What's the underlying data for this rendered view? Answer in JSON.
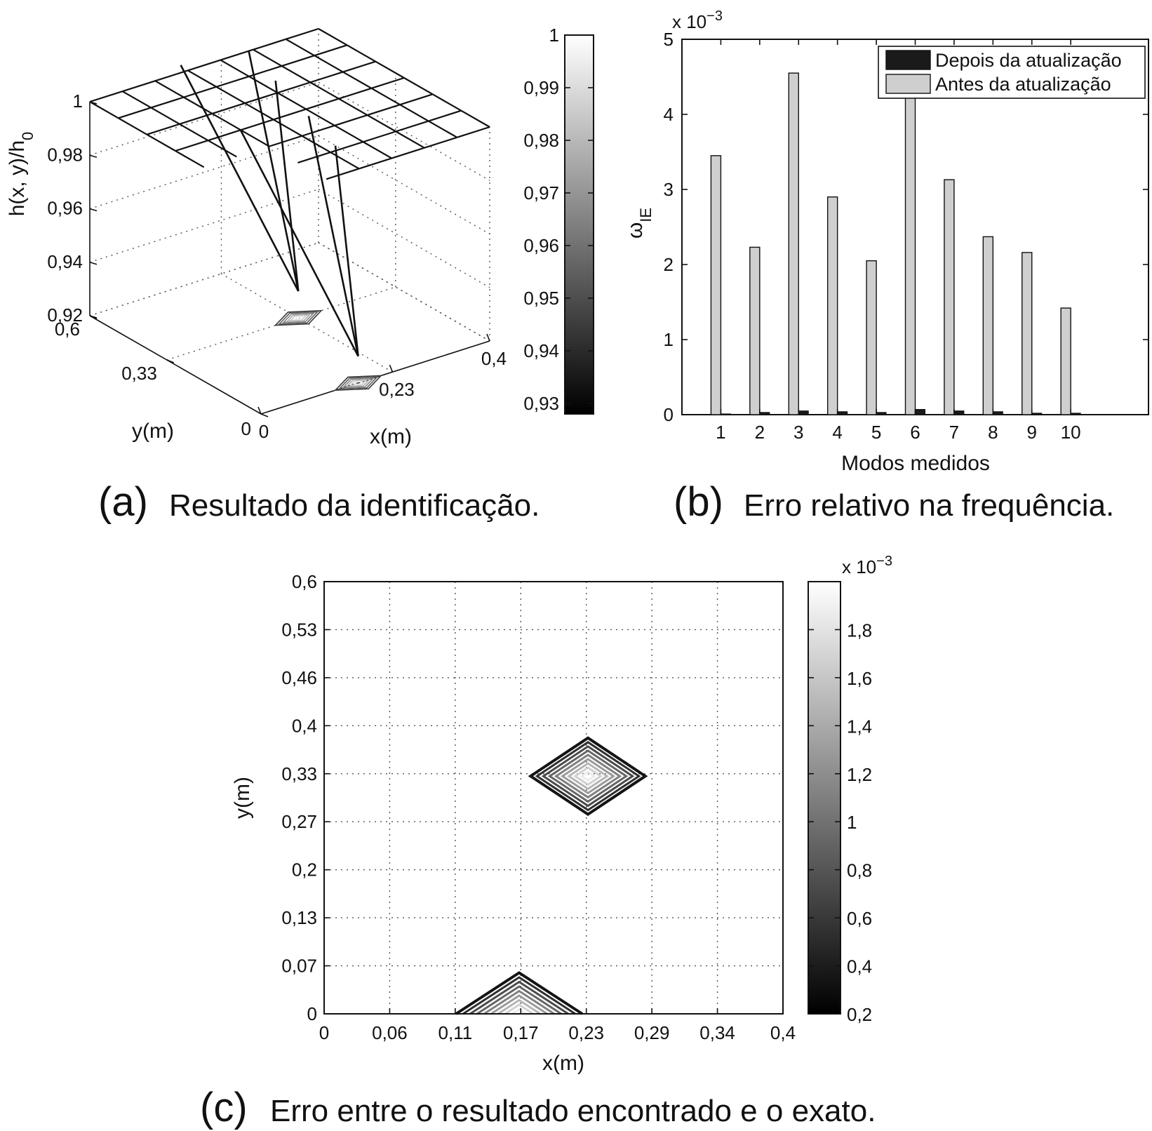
{
  "panels": {
    "a": {
      "letter": "(a)",
      "caption": "Resultado da identificação."
    },
    "b": {
      "letter": "(b)",
      "caption": "Erro relativo na frequência."
    },
    "c": {
      "letter": "(c)",
      "caption": "Erro entre o resultado encontrado e o exato."
    }
  },
  "chart_data": [
    {
      "id": "a",
      "type": "surface3d",
      "zlabel": "h(x, y)/h₀",
      "xlabel": "x(m)",
      "ylabel": "y(m)",
      "x_ticks": [
        "0",
        "0,23",
        "0,4"
      ],
      "y_ticks": [
        "0",
        "0,33",
        "0,6"
      ],
      "z_ticks": [
        "0,92",
        "0,94",
        "0,96",
        "0,98",
        "1"
      ],
      "zlim": [
        0.92,
        1
      ],
      "grid": true,
      "surface_level": 1,
      "dips": [
        {
          "x": 0.17,
          "y": 0.0,
          "min_value": 0.93
        },
        {
          "x": 0.23,
          "y": 0.33,
          "min_value": 0.93
        }
      ],
      "colorbar": {
        "ticks": [
          "0,93",
          "0,94",
          "0,95",
          "0,96",
          "0,97",
          "0,98",
          "0,99",
          "1"
        ],
        "range": [
          0.928,
          1.0
        ]
      }
    },
    {
      "id": "b",
      "type": "bar",
      "xlabel": "Modos medidos",
      "ylabel": "ω",
      "ylabel_sub": "IE",
      "exponent": "x 10",
      "exponent_power": "−3",
      "categories": [
        "1",
        "2",
        "3",
        "4",
        "5",
        "6",
        "7",
        "8",
        "9",
        "10"
      ],
      "ylim": [
        0,
        5
      ],
      "y_ticks": [
        "0",
        "1",
        "2",
        "3",
        "4",
        "5"
      ],
      "legend_position": "top-right",
      "series": [
        {
          "name": "Depois da atualização",
          "color": "#1a1a1a",
          "values": [
            0.01,
            0.03,
            0.05,
            0.04,
            0.03,
            0.07,
            0.05,
            0.04,
            0.02,
            0.02
          ]
        },
        {
          "name": "Antes da atualização",
          "color": "#cfcfcf",
          "values": [
            3.45,
            2.23,
            4.55,
            2.9,
            2.05,
            4.5,
            3.13,
            2.37,
            2.16,
            1.42
          ]
        }
      ]
    },
    {
      "id": "c",
      "type": "contour",
      "xlabel": "x(m)",
      "ylabel": "y(m)",
      "x_ticks": [
        "0",
        "0,06",
        "0,11",
        "0,17",
        "0,23",
        "0,29",
        "0,34",
        "0,4"
      ],
      "y_ticks": [
        "0",
        "0,07",
        "0,13",
        "0,2",
        "0,27",
        "0,33",
        "0,4",
        "0,46",
        "0,53",
        "0,6"
      ],
      "xlim": [
        0,
        0.4
      ],
      "ylim": [
        0,
        0.6
      ],
      "grid": true,
      "peaks": [
        {
          "x": 0.23,
          "y": 0.33,
          "half_width_x": 0.05,
          "half_width_y": 0.053
        },
        {
          "x": 0.17,
          "y": 0.0,
          "half_width_x": 0.055,
          "half_width_y": 0.057
        }
      ],
      "colorbar": {
        "exponent": "x 10",
        "exponent_power": "−3",
        "ticks": [
          "0,2",
          "0,4",
          "0,6",
          "0,8",
          "1",
          "1,2",
          "1,4",
          "1,6",
          "1,8"
        ],
        "range": [
          0.2,
          2.0
        ]
      }
    }
  ]
}
